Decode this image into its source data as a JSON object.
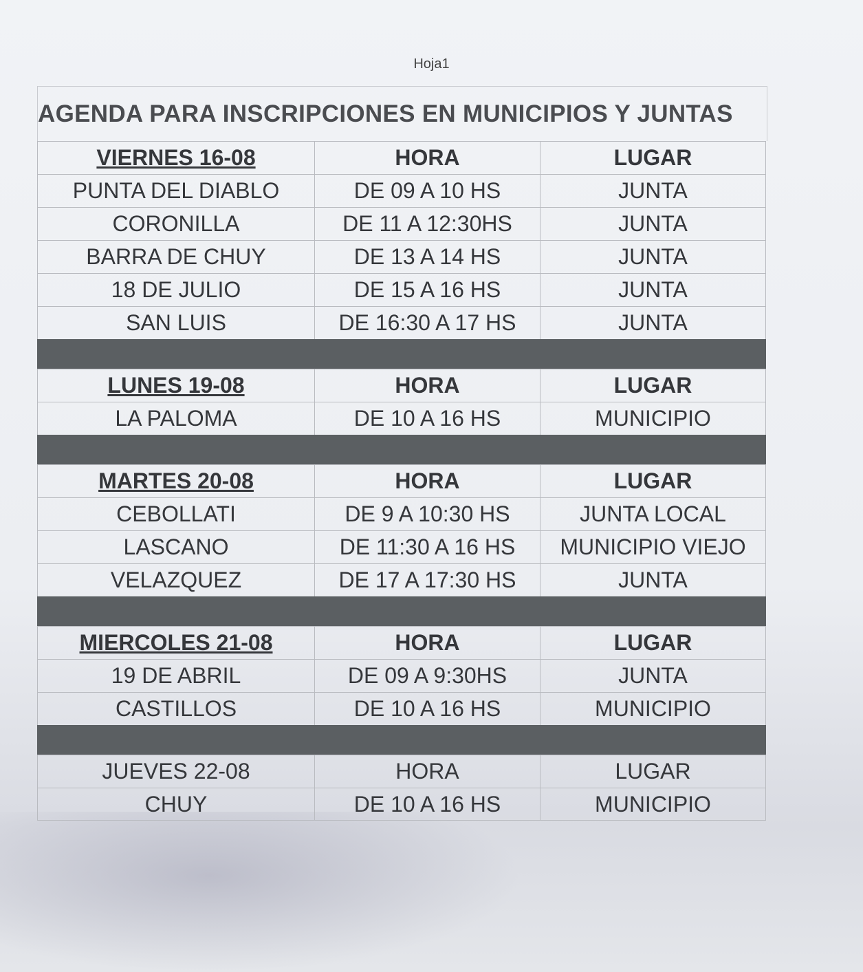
{
  "sheet_label": "Hoja1",
  "title": "AGENDA PARA INSCRIPCIONES EN MUNICIPIOS Y JUNTAS",
  "separator_color": "#5b5f62",
  "sections": [
    {
      "day": "VIERNES 16-08",
      "hora": "HORA",
      "lugar": "LUGAR",
      "emphasized": true,
      "rows": [
        {
          "place": "PUNTA DEL DIABLO",
          "time": "DE 09 A 10 HS",
          "venue": "JUNTA"
        },
        {
          "place": "CORONILLA",
          "time": "DE 11 A 12:30HS",
          "venue": "JUNTA"
        },
        {
          "place": "BARRA DE CHUY",
          "time": "DE 13 A 14 HS",
          "venue": "JUNTA"
        },
        {
          "place": "18 DE JULIO",
          "time": "DE 15 A 16 HS",
          "venue": "JUNTA"
        },
        {
          "place": "SAN LUIS",
          "time": "DE 16:30 A 17 HS",
          "venue": "JUNTA"
        }
      ]
    },
    {
      "day": "LUNES 19-08",
      "hora": "HORA",
      "lugar": "LUGAR",
      "emphasized": true,
      "rows": [
        {
          "place": "LA PALOMA",
          "time": "DE 10 A 16 HS",
          "venue": "MUNICIPIO"
        }
      ]
    },
    {
      "day": "MARTES 20-08",
      "hora": "HORA",
      "lugar": "LUGAR",
      "emphasized": true,
      "rows": [
        {
          "place": "CEBOLLATI",
          "time": "DE 9 A 10:30 HS",
          "venue": "JUNTA LOCAL"
        },
        {
          "place": "LASCANO",
          "time": "DE 11:30 A 16 HS",
          "venue": "MUNICIPIO VIEJO"
        },
        {
          "place": "VELAZQUEZ",
          "time": "DE 17 A 17:30 HS",
          "venue": "JUNTA"
        }
      ]
    },
    {
      "day": "MIERCOLES 21-08",
      "hora": "HORA",
      "lugar": "LUGAR",
      "emphasized": true,
      "rows": [
        {
          "place": "19 DE ABRIL",
          "time": "DE 09 A 9:30HS",
          "venue": "JUNTA"
        },
        {
          "place": "CASTILLOS",
          "time": "DE 10 A 16 HS",
          "venue": "MUNICIPIO"
        }
      ]
    },
    {
      "day": "JUEVES 22-08",
      "hora": "HORA",
      "lugar": "LUGAR",
      "emphasized": false,
      "rows": [
        {
          "place": "CHUY",
          "time": "DE  10 A 16 HS",
          "venue": "MUNICIPIO"
        }
      ]
    }
  ]
}
